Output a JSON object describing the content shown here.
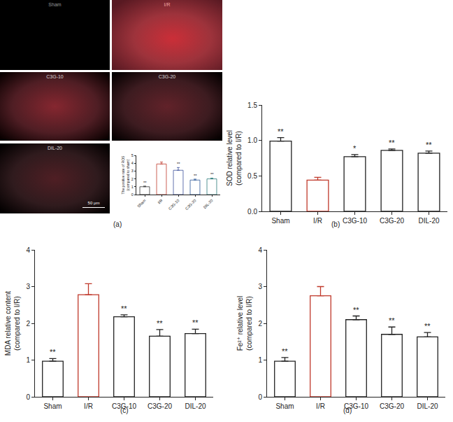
{
  "image_panels": {
    "caption": "(a)",
    "labels": [
      "Sham",
      "I/R",
      "C3G-10",
      "C3G-20",
      "DIL-20"
    ],
    "scale_bar": "50 μm"
  },
  "chart_data": [
    {
      "type": "bar",
      "ylabel": "The positive rate of ROS (compared to sham)",
      "categories": [
        "Sham",
        "I/R",
        "C3G-10",
        "C3G-20",
        "DIL-20"
      ],
      "values": [
        1.0,
        3.9,
        3.1,
        1.85,
        2.0
      ],
      "errors": [
        0.08,
        0.25,
        0.35,
        0.12,
        0.1
      ],
      "significance": [
        "**",
        null,
        "**",
        "**",
        "**"
      ],
      "colors": [
        "#333333",
        "#c0392b",
        "#3b4f9a",
        "#2b5797",
        "#2b7a78"
      ],
      "ylim": [
        0,
        5
      ],
      "yticks": [
        0,
        1,
        2,
        3,
        4,
        5
      ],
      "grid": false
    },
    {
      "type": "bar",
      "caption": "(b)",
      "ylabel": "SOD relative level (compared to I/R)",
      "categories": [
        "Sham",
        "I/R",
        "C3G-10",
        "C3G-20",
        "DIL-20"
      ],
      "values": [
        0.99,
        0.44,
        0.77,
        0.86,
        0.82
      ],
      "errors": [
        0.05,
        0.04,
        0.03,
        0.02,
        0.03
      ],
      "significance": [
        "**",
        null,
        "*",
        "**",
        "**"
      ],
      "colors": [
        "#222222",
        "#c0392b",
        "#222222",
        "#222222",
        "#222222"
      ],
      "ylim": [
        0,
        1.5
      ],
      "yticks": [
        {
          "value": 0,
          "label": "0.0"
        },
        {
          "value": 0.5,
          "label": "0.5"
        },
        {
          "value": 1,
          "label": "1.0"
        },
        {
          "value": 1.5,
          "label": "1.5"
        }
      ],
      "grid": false
    },
    {
      "type": "bar",
      "caption": "(c)",
      "ylabel": "MDA relative content (compared to I/R)",
      "categories": [
        "Sham",
        "I/R",
        "C3G-10",
        "C3G-20",
        "DIL-20"
      ],
      "values": [
        0.97,
        2.78,
        2.18,
        1.65,
        1.72
      ],
      "errors": [
        0.07,
        0.3,
        0.05,
        0.18,
        0.12
      ],
      "significance": [
        "**",
        null,
        "**",
        "**",
        "**"
      ],
      "colors": [
        "#222222",
        "#c0392b",
        "#222222",
        "#222222",
        "#222222"
      ],
      "ylim": [
        0,
        4
      ],
      "yticks": [
        0,
        1,
        2,
        3,
        4
      ],
      "grid": false
    },
    {
      "type": "bar",
      "caption": "(d)",
      "ylabel": "Fe²⁺ relative level (compared to I/R)",
      "categories": [
        "Sham",
        "I/R",
        "C3G-10",
        "C3G-20",
        "DIL-20"
      ],
      "values": [
        0.97,
        2.75,
        2.1,
        1.7,
        1.63
      ],
      "errors": [
        0.1,
        0.25,
        0.1,
        0.2,
        0.12
      ],
      "significance": [
        "**",
        null,
        "**",
        "**",
        "**"
      ],
      "colors": [
        "#222222",
        "#c0392b",
        "#222222",
        "#222222",
        "#222222"
      ],
      "ylim": [
        0,
        4
      ],
      "yticks": [
        0,
        1,
        2,
        3,
        4
      ],
      "grid": false
    }
  ]
}
